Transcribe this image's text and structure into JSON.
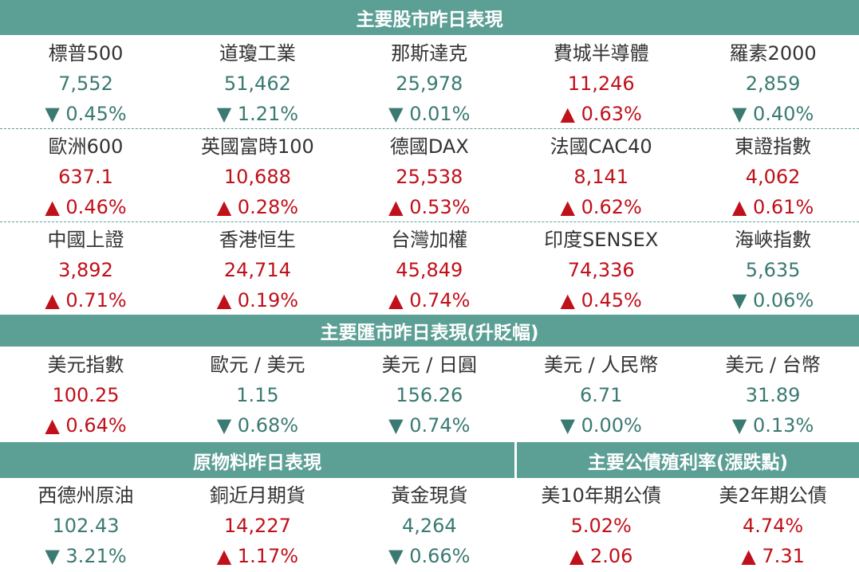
{
  "stocks": {
    "title": "主要股市昨日表現",
    "rows": [
      [
        {
          "name": "標普500",
          "value": "7,552",
          "change": "▼ 0.45%"
        },
        {
          "name": "道瓊工業",
          "value": "51,462",
          "change": "▼ 1.21%"
        },
        {
          "name": "那斯達克",
          "value": "25,978",
          "change": "▼ 0.01%"
        },
        {
          "name": "費城半導體",
          "value": "11,246",
          "change": "▲ 0.63%"
        },
        {
          "name": "羅素2000",
          "value": "2,859",
          "change": "▼ 0.40%"
        }
      ],
      [
        {
          "name": "歐洲600",
          "value": "637.1",
          "change": "▲ 0.46%"
        },
        {
          "name": "英國富時100",
          "value": "10,688",
          "change": "▲ 0.28%"
        },
        {
          "name": "德國DAX",
          "value": "25,538",
          "change": "▲ 0.53%"
        },
        {
          "name": "法國CAC40",
          "value": "8,141",
          "change": "▲ 0.62%"
        },
        {
          "name": "東證指數",
          "value": "4,062",
          "change": "▲ 0.61%"
        }
      ],
      [
        {
          "name": "中國上證",
          "value": "3,892",
          "change": "▲ 0.71%"
        },
        {
          "name": "香港恒生",
          "value": "24,714",
          "change": "▲ 0.19%"
        },
        {
          "name": "台灣加權",
          "value": "45,849",
          "change": "▲ 0.74%"
        },
        {
          "name": "印度SENSEX",
          "value": "74,336",
          "change": "▲ 0.45%"
        },
        {
          "name": "海峽指數",
          "value": "5,635",
          "change": "▼ 0.06%"
        }
      ]
    ]
  },
  "fx": {
    "title": "主要匯市昨日表現(升貶幅)",
    "rows": [
      [
        {
          "name": "美元指數",
          "value": "100.25",
          "change": "▲ 0.64%"
        },
        {
          "name": "歐元 / 美元",
          "value": "1.15",
          "change": "▼ 0.68%"
        },
        {
          "name": "美元 / 日圓",
          "value": "156.26",
          "change": "▼ 0.74%"
        },
        {
          "name": "美元 / 人民幣",
          "value": "6.71",
          "change": "▼ 0.00%"
        },
        {
          "name": "美元 / 台幣",
          "value": "31.89",
          "change": "▼ 0.13%"
        }
      ]
    ]
  },
  "commodities": {
    "title": "原物料昨日表現",
    "items": [
      {
        "name": "西德州原油",
        "value": "102.43",
        "change": "▼ 3.21%"
      },
      {
        "name": "銅近月期貨",
        "value": "14,227",
        "change": "▲ 1.17%"
      },
      {
        "name": "黃金現貨",
        "value": "4,264",
        "change": "▼ 0.66%"
      }
    ]
  },
  "bonds": {
    "title": "主要公債殖利率(漲跌點)",
    "items": [
      {
        "name": "美10年期公債",
        "value": "5.02%",
        "change": "▲ 2.06"
      },
      {
        "name": "美2年期公債",
        "value": "4.74%",
        "change": "▲ 7.31"
      }
    ]
  }
}
